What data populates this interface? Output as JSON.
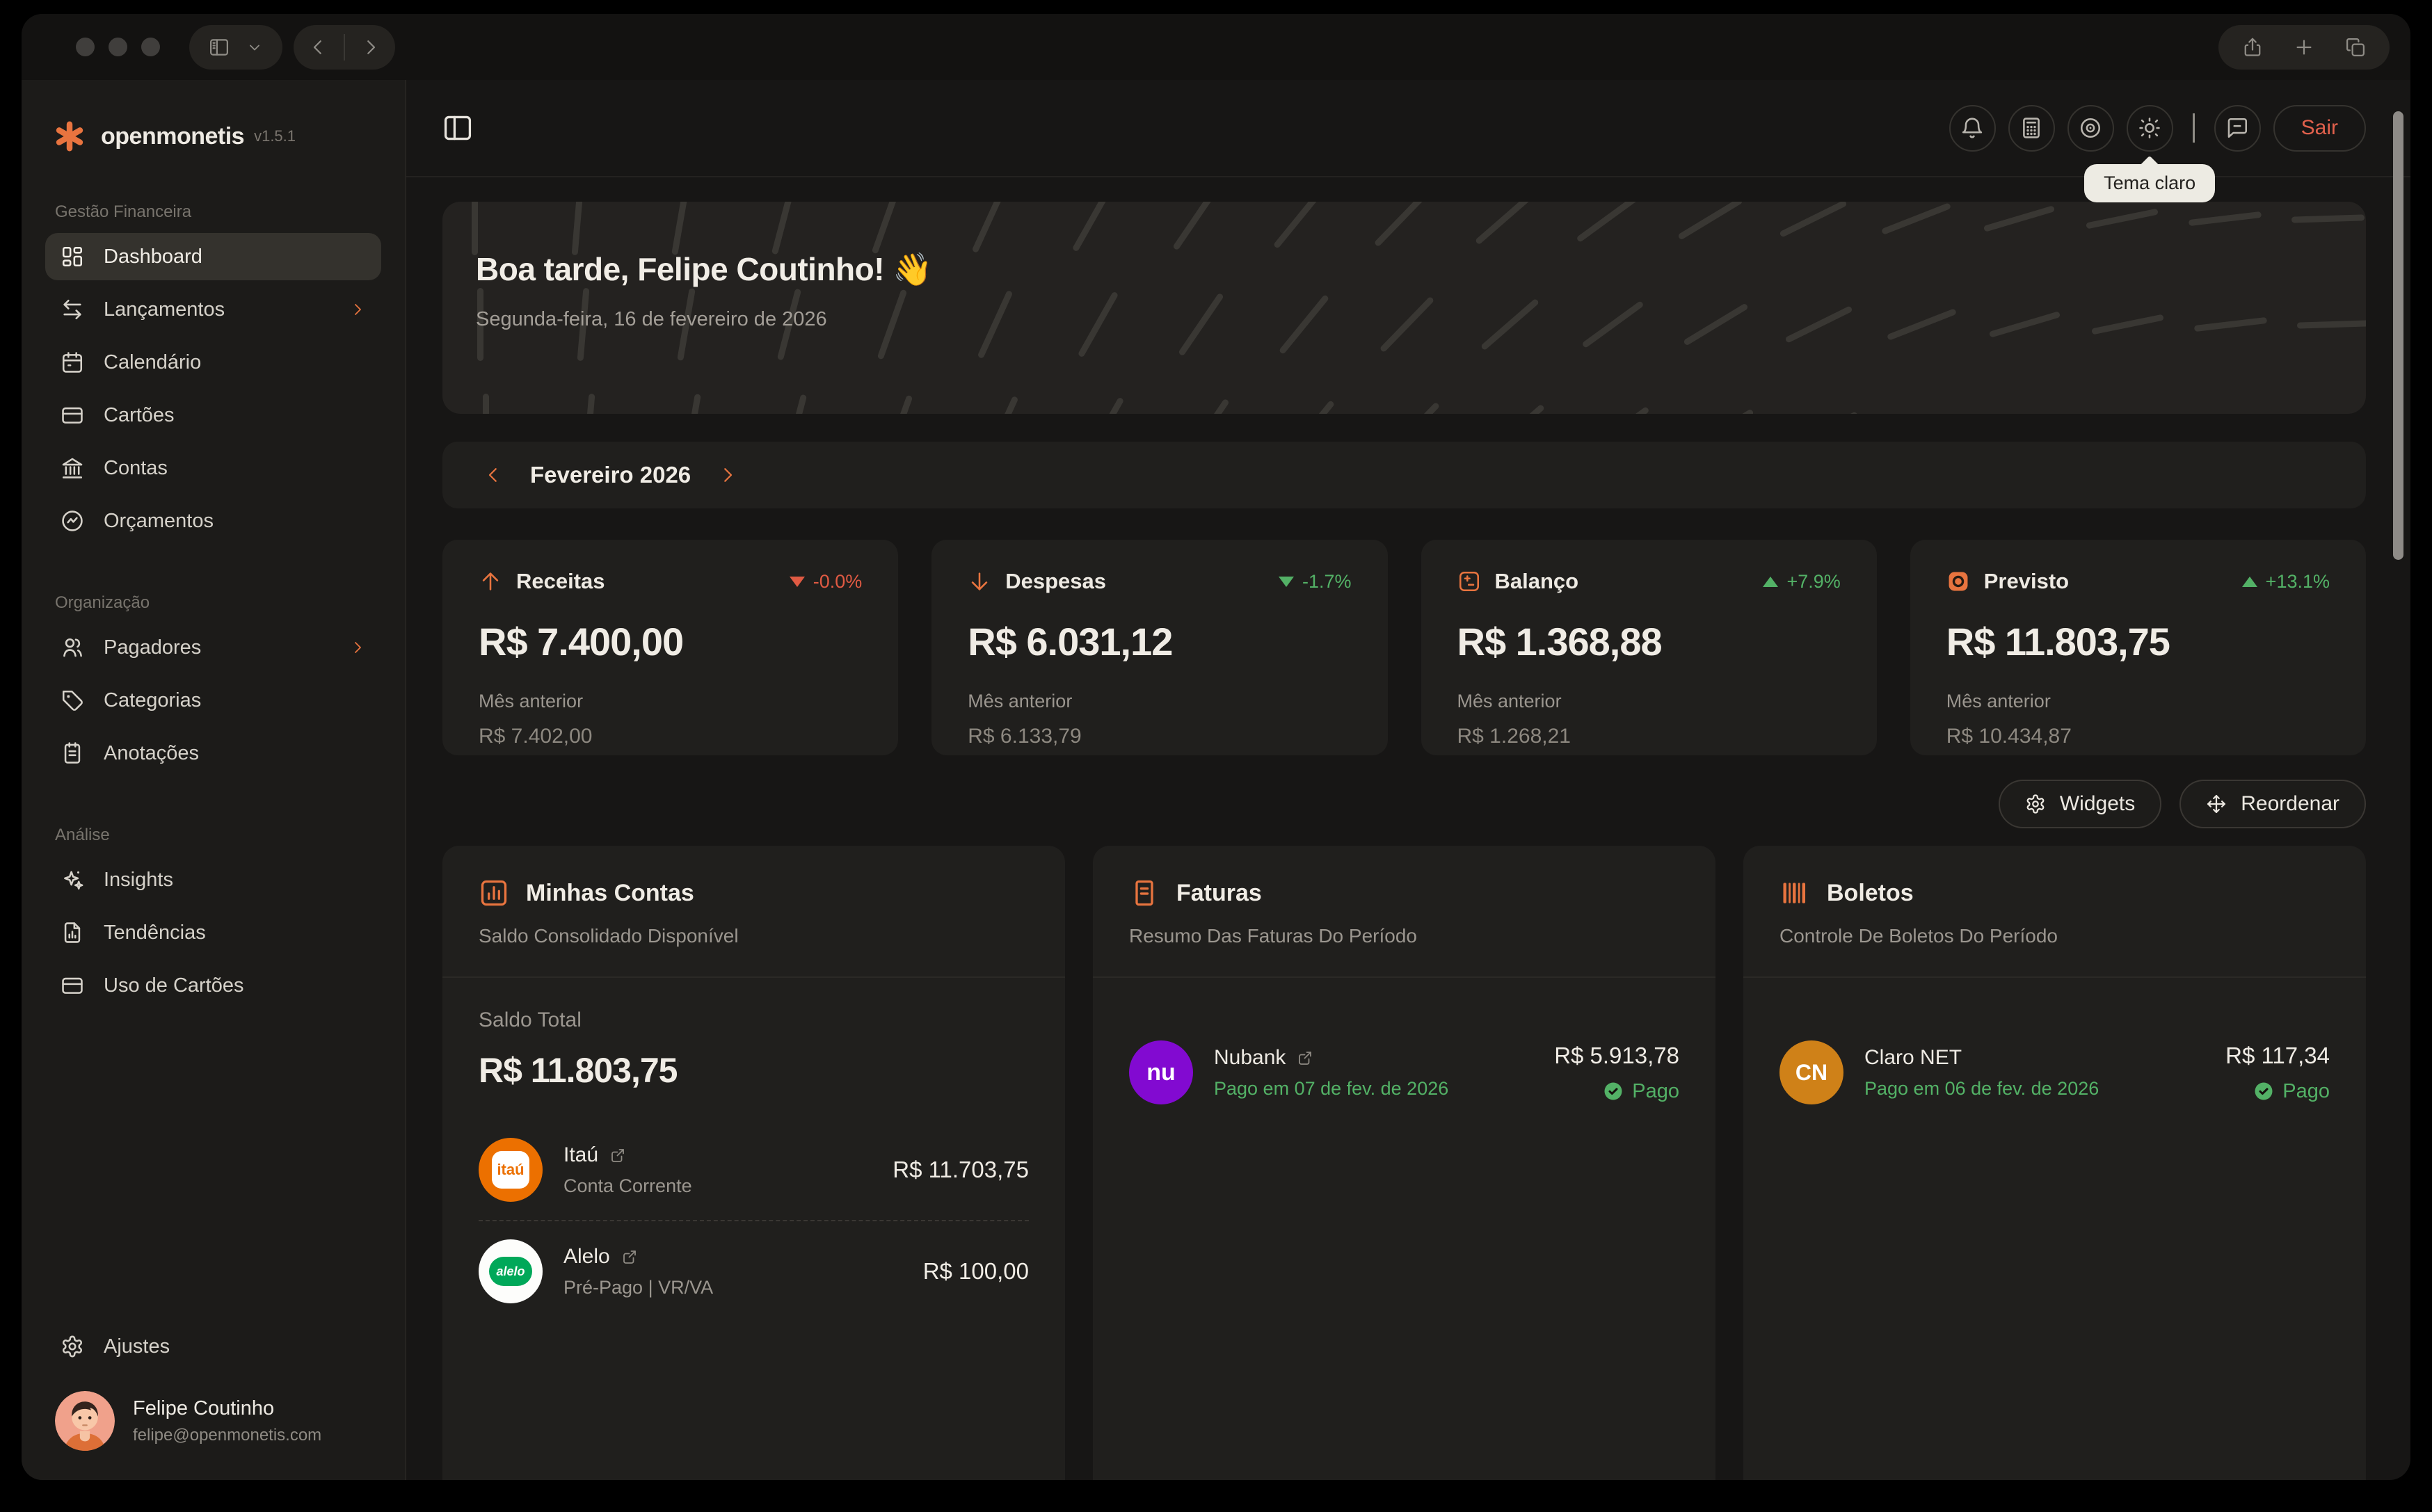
{
  "colors": {
    "accent": "#e8743f",
    "positive_green": "#53b166",
    "negative_red": "#e05a43",
    "logout_red": "#e0604c",
    "tooltip_bg": "#edebe3",
    "itau_orange": "#ec7000",
    "alelo_green": "#00a859",
    "nubank_purple": "#820ad1",
    "claro_orange": "#cf8118"
  },
  "sidebar": {
    "logo_text": "openmonetis",
    "version": "v1.5.1",
    "sections": [
      {
        "label": "Gestão Financeira",
        "items": [
          {
            "label": "Dashboard"
          },
          {
            "label": "Lançamentos"
          },
          {
            "label": "Calendário"
          },
          {
            "label": "Cartões"
          },
          {
            "label": "Contas"
          },
          {
            "label": "Orçamentos"
          }
        ]
      },
      {
        "label": "Organização",
        "items": [
          {
            "label": "Pagadores"
          },
          {
            "label": "Categorias"
          },
          {
            "label": "Anotações"
          }
        ]
      },
      {
        "label": "Análise",
        "items": [
          {
            "label": "Insights"
          },
          {
            "label": "Tendências"
          },
          {
            "label": "Uso de Cartões"
          }
        ]
      }
    ],
    "settings_label": "Ajustes",
    "user": {
      "name": "Felipe Coutinho",
      "email": "felipe@openmonetis.com"
    }
  },
  "topbar": {
    "logout_label": "Sair",
    "theme_tooltip": "Tema claro"
  },
  "banner": {
    "greeting": "Boa tarde, Felipe Coutinho! 👋",
    "date": "Segunda-feira, 16 de fevereiro de 2026"
  },
  "month": {
    "label": "Fevereiro 2026"
  },
  "stats": [
    {
      "title": "Receitas",
      "delta": "-0.0%",
      "value": "R$ 7.400,00",
      "prev_label": "Mês anterior",
      "prev_value": "R$ 7.402,00"
    },
    {
      "title": "Despesas",
      "delta": "-1.7%",
      "value": "R$ 6.031,12",
      "prev_label": "Mês anterior",
      "prev_value": "R$ 6.133,79"
    },
    {
      "title": "Balanço",
      "delta": "+7.9%",
      "value": "R$ 1.368,88",
      "prev_label": "Mês anterior",
      "prev_value": "R$ 1.268,21"
    },
    {
      "title": "Previsto",
      "delta": "+13.1%",
      "value": "R$ 11.803,75",
      "prev_label": "Mês anterior",
      "prev_value": "R$ 10.434,87"
    }
  ],
  "actions": {
    "widgets_label": "Widgets",
    "reorder_label": "Reordenar"
  },
  "cards": {
    "accounts": {
      "title": "Minhas Contas",
      "subtitle": "Saldo Consolidado Disponível",
      "total_label": "Saldo Total",
      "total_value": "R$ 11.803,75",
      "rows": [
        {
          "logo_text": "itaú",
          "name": "Itaú",
          "sub": "Conta Corrente",
          "value": "R$ 11.703,75"
        },
        {
          "logo_text": "alelo",
          "name": "Alelo",
          "sub": "Pré-Pago | VR/VA",
          "value": "R$ 100,00"
        }
      ]
    },
    "invoices": {
      "title": "Faturas",
      "subtitle": "Resumo Das Faturas Do Período",
      "rows": [
        {
          "logo_text": "nu",
          "name": "Nubank",
          "date": "Pago em 07 de fev. de 2026",
          "value": "R$ 5.913,78",
          "status": "Pago"
        }
      ]
    },
    "bills": {
      "title": "Boletos",
      "subtitle": "Controle De Boletos Do Período",
      "rows": [
        {
          "logo_text": "CN",
          "name": "Claro NET",
          "date": "Pago em 06 de fev. de 2026",
          "value": "R$ 117,34",
          "status": "Pago"
        }
      ]
    }
  }
}
